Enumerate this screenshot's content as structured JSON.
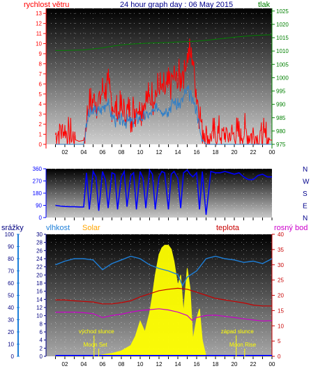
{
  "header": {
    "wind_label": "rychlost větru",
    "title": "24 hour graph day : 06 May 2015",
    "pressure_label": "tlak"
  },
  "labels2": {
    "rain": "srážky",
    "humidity": "vlhkost",
    "solar": "Solar",
    "temperature": "teplota",
    "dewpoint": "rosný bod"
  },
  "annotations": {
    "sunrise": "východ slunce",
    "sunset": "západ slunce",
    "moonset": "Moon Set",
    "moonrise": "Moon Rise"
  },
  "colors": {
    "wind": "#ff0000",
    "wind_avg": "#2f7fc8",
    "pressure": "#008000",
    "direction": "#0000ff",
    "humidity": "#1e7fd8",
    "solar": "#ffff00",
    "temperature": "#c80000",
    "dewpoint": "#cc00cc",
    "rain": "#0000ff",
    "title": "#00008b"
  },
  "chart_data": [
    {
      "type": "line",
      "title": "24 hour graph day : 06 May 2015",
      "x_tick_labels": [
        "02",
        "04",
        "06",
        "08",
        "10",
        "12",
        "14",
        "16",
        "18",
        "20",
        "22",
        "00"
      ],
      "y_left_label": "rychlost větru",
      "y_left_ticks": [
        "0",
        "1",
        "2",
        "3",
        "4",
        "5",
        "6",
        "7",
        "8",
        "9",
        "10",
        "11",
        "12",
        "13"
      ],
      "y_left_range": [
        0,
        13.5
      ],
      "y_right_label": "tlak",
      "y_right_ticks": [
        "975",
        "980",
        "985",
        "990",
        "995",
        "1000",
        "1005",
        "1010",
        "1015",
        "1020",
        "1025"
      ],
      "y_right_range": [
        975,
        1026
      ],
      "series": [
        {
          "name": "rychlost větru",
          "axis": "left",
          "x": [
            1,
            1.5,
            2,
            2.5,
            3,
            3.5,
            4,
            4.5,
            5,
            5.5,
            6,
            6.5,
            7,
            7.5,
            8,
            8.5,
            9,
            9.5,
            10,
            10.5,
            11,
            11.5,
            12,
            12.5,
            13,
            13.5,
            14,
            14.5,
            15,
            15.5,
            16,
            16.5,
            17,
            17.5,
            18,
            18.5,
            19,
            19.5,
            20,
            20.5,
            21,
            21.5,
            22,
            22.5,
            23,
            23.5,
            24
          ],
          "values": [
            1,
            1.5,
            1.2,
            0.8,
            0.5,
            0.3,
            0.4,
            3.5,
            4.5,
            4.2,
            5.2,
            6,
            4.2,
            3,
            3.4,
            3.2,
            3.1,
            3.6,
            3.8,
            4.2,
            4.4,
            4.8,
            5.6,
            5.2,
            5.6,
            6.8,
            6.2,
            7.2,
            8.4,
            9.2,
            5,
            2,
            0.9,
            0.7,
            0.8,
            1,
            0.8,
            0.9,
            1,
            0.8,
            1.2,
            0.9,
            1,
            0.7,
            0.6,
            0.5,
            0.4
          ]
        },
        {
          "name": "",
          "axis": "left",
          "x": [
            1,
            1.5,
            2,
            2.5,
            3,
            3.5,
            4,
            4.5,
            5,
            5.5,
            6,
            6.5,
            7,
            7.5,
            8,
            8.5,
            9,
            9.5,
            10,
            10.5,
            11,
            11.5,
            12,
            12.5,
            13,
            13.5,
            14,
            14.5,
            15,
            15.5,
            16,
            16.5,
            17,
            17.5,
            18,
            18.5,
            19,
            19.5,
            20,
            20.5,
            21,
            21.5,
            22,
            22.5,
            23,
            23.5,
            24
          ],
          "values": [
            0,
            0,
            0,
            0,
            0,
            0,
            0,
            2.8,
            3.3,
            3.2,
            3.7,
            4.2,
            2.9,
            2.2,
            2.4,
            2.3,
            2.2,
            2.5,
            2.6,
            2.8,
            3,
            3.2,
            3.7,
            3.3,
            3.5,
            4.3,
            3.8,
            4.5,
            5.5,
            4.5,
            3.5,
            0.6,
            0,
            0,
            0,
            0,
            0,
            0,
            0,
            0,
            0,
            0,
            0,
            0,
            0,
            0,
            0
          ]
        },
        {
          "name": "tlak",
          "axis": "right",
          "x": [
            1,
            2,
            3,
            4,
            5,
            6,
            7,
            8,
            9,
            10,
            11,
            12,
            13,
            14,
            15,
            16,
            17,
            18,
            19,
            20,
            21,
            22,
            23,
            24
          ],
          "values": [
            1010.2,
            1010.2,
            1010.3,
            1010.4,
            1010.8,
            1011.2,
            1011.8,
            1012.3,
            1012.6,
            1012.8,
            1013,
            1013.1,
            1013.2,
            1013.4,
            1013.5,
            1013.7,
            1014,
            1014.4,
            1014.8,
            1015.2,
            1015.5,
            1015.8,
            1016,
            1016.1
          ]
        }
      ]
    },
    {
      "type": "scatter",
      "x_tick_labels": [],
      "y_ticks": [
        "0",
        "90",
        "180",
        "270",
        "360"
      ],
      "y_range": [
        0,
        360
      ],
      "compass_labels": [
        "N",
        "W",
        "S",
        "E",
        "N"
      ],
      "series": [
        {
          "name": "",
          "x": [
            1,
            1.5,
            2,
            2.5,
            3,
            3.5,
            4,
            4.3,
            4.6,
            5,
            5.3,
            5.6,
            6,
            6.3,
            6.6,
            7,
            7.3,
            7.6,
            8,
            8.3,
            8.6,
            9,
            9.3,
            9.6,
            10,
            10.3,
            10.6,
            11,
            11.3,
            11.6,
            12,
            12.3,
            12.6,
            13,
            13.3,
            13.6,
            14,
            14.3,
            14.6,
            15,
            15.3,
            15.6,
            16,
            16.3,
            16.6,
            17,
            17.5,
            18,
            18.5,
            19,
            19.5,
            20,
            20.5,
            21,
            21.5,
            22,
            22.5,
            23,
            23.5,
            24
          ],
          "values": [
            90,
            85,
            82,
            80,
            80,
            78,
            78,
            330,
            60,
            340,
            300,
            50,
            340,
            280,
            70,
            330,
            320,
            60,
            300,
            340,
            80,
            310,
            330,
            60,
            340,
            290,
            70,
            350,
            320,
            60,
            300,
            340,
            330,
            60,
            320,
            340,
            290,
            70,
            330,
            350,
            320,
            300,
            330,
            60,
            340,
            20,
            340,
            330,
            330,
            340,
            330,
            320,
            330,
            300,
            280,
            280,
            310,
            320,
            300,
            300
          ]
        }
      ]
    },
    {
      "type": "line",
      "x_tick_labels": [
        "02",
        "04",
        "06",
        "08",
        "10",
        "12",
        "14",
        "16",
        "18",
        "20",
        "22",
        "00"
      ],
      "rain_ticks": [
        "0",
        "10",
        "20",
        "30",
        "40",
        "50",
        "60",
        "70",
        "80",
        "90",
        "100"
      ],
      "rain_range": [
        0,
        100
      ],
      "humidity_ticks": [
        "0",
        "2",
        "4",
        "6",
        "8",
        "10",
        "12",
        "14",
        "16",
        "18",
        "20",
        "22",
        "24",
        "26",
        "28",
        "30"
      ],
      "temp_ticks": [
        "0",
        "5",
        "10",
        "15",
        "20",
        "25",
        "30",
        "35",
        "40"
      ],
      "temp_range": [
        0,
        40
      ],
      "series": [
        {
          "name": "vlhkost",
          "axis": "humidity",
          "x": [
            1,
            2,
            3,
            4,
            5,
            6,
            7,
            8,
            9,
            10,
            11,
            12,
            13,
            14,
            14.5,
            15,
            16,
            17,
            18,
            19,
            20,
            21,
            22,
            23,
            24
          ],
          "values": [
            75,
            78,
            80,
            80,
            79,
            71,
            76,
            79,
            82,
            80,
            75,
            72,
            70,
            67,
            58,
            65,
            70,
            80,
            82,
            80,
            79,
            77,
            78,
            76,
            80
          ]
        },
        {
          "name": "Solar",
          "axis": "solar",
          "x": [
            1,
            5,
            5.5,
            6,
            7,
            8,
            9,
            9.5,
            10,
            10.5,
            11,
            11.3,
            11.6,
            12,
            12.3,
            12.6,
            13,
            13.3,
            13.6,
            14,
            14.3,
            14.6,
            15,
            15.3,
            15.6,
            16,
            16.3,
            16.6,
            17,
            18,
            24
          ],
          "values": [
            0,
            0,
            5,
            12,
            22,
            40,
            80,
            150,
            260,
            180,
            320,
            450,
            600,
            750,
            800,
            820,
            820,
            790,
            700,
            520,
            600,
            320,
            650,
            500,
            120,
            280,
            350,
            120,
            0,
            0,
            0
          ]
        },
        {
          "name": "teplota",
          "axis": "temp",
          "x": [
            1,
            2,
            3,
            4,
            5,
            6,
            7,
            8,
            9,
            10,
            11,
            12,
            13,
            14,
            15,
            16,
            17,
            18,
            19,
            20,
            21,
            22,
            23,
            24
          ],
          "values": [
            18.5,
            18.5,
            18.2,
            18,
            17.8,
            17.2,
            17.2,
            17.6,
            18.2,
            19.5,
            20.5,
            21.5,
            22,
            22.3,
            22,
            21,
            20,
            19,
            18.5,
            18,
            17.5,
            16.8,
            16.5,
            16.5
          ]
        },
        {
          "name": "rosný bod",
          "axis": "temp",
          "x": [
            1,
            2,
            3,
            4,
            5,
            6,
            7,
            8,
            9,
            10,
            11,
            12,
            13,
            14,
            15,
            15.5,
            16,
            17,
            18,
            19,
            20,
            21,
            22,
            23,
            24
          ],
          "values": [
            14.5,
            14.5,
            14.5,
            14.3,
            14,
            12.7,
            13.4,
            13.8,
            14.5,
            15,
            15.3,
            15.6,
            15.2,
            14.5,
            13.4,
            11.8,
            12.7,
            13.4,
            13.5,
            13.1,
            12.7,
            12.3,
            11.9,
            11.6,
            11.7
          ]
        },
        {
          "name": "srážky",
          "axis": "rain",
          "x": [
            1,
            24
          ],
          "values": [
            0,
            0
          ]
        }
      ]
    }
  ]
}
